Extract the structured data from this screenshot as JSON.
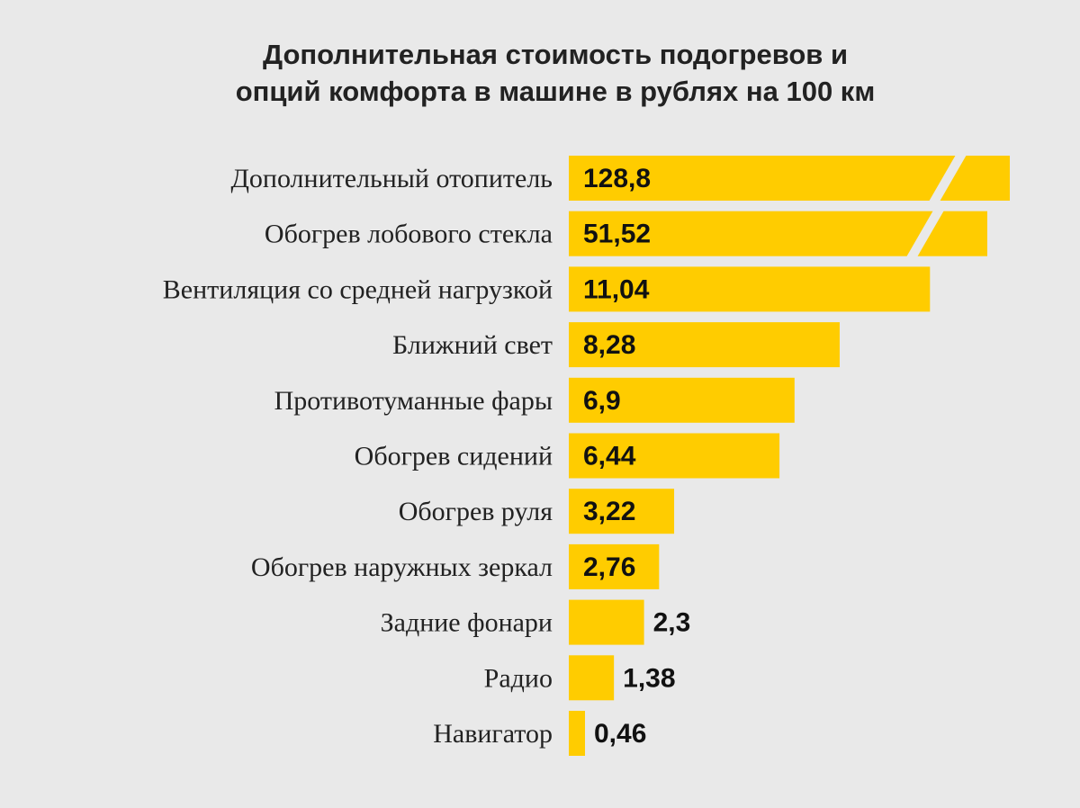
{
  "colors": {
    "background": "#e9e9e9",
    "bar": "#ffcc00",
    "text": "#222222"
  },
  "chart_data": {
    "type": "bar",
    "orientation": "horizontal",
    "title_lines": [
      "Дополнительная стоимость подогревов и",
      "опций комфорта в машине в рублях на 100 км"
    ],
    "categories": [
      "Дополнительный отопитель",
      "Обогрев лобового стекла",
      "Вентиляция со средней нагрузкой",
      "Ближний свет",
      "Противотуманные фары",
      "Обогрев сидений",
      "Обогрев руля",
      "Обогрев наружных зеркал",
      "Задние фонари",
      "Радио",
      "Навигатор"
    ],
    "values": [
      128.8,
      51.52,
      11.04,
      8.28,
      6.9,
      6.44,
      3.22,
      2.76,
      2.3,
      1.38,
      0.46
    ],
    "value_labels": [
      "128,8",
      "51,52",
      "11,04",
      "8,28",
      "6,9",
      "6,44",
      "3,22",
      "2,76",
      "2,3",
      "1,38",
      "0,46"
    ],
    "axis_break": [
      true,
      true,
      false,
      false,
      false,
      false,
      false,
      false,
      false,
      false,
      false
    ],
    "xlabel": "",
    "ylabel": "",
    "grid": false,
    "legend": "none"
  }
}
